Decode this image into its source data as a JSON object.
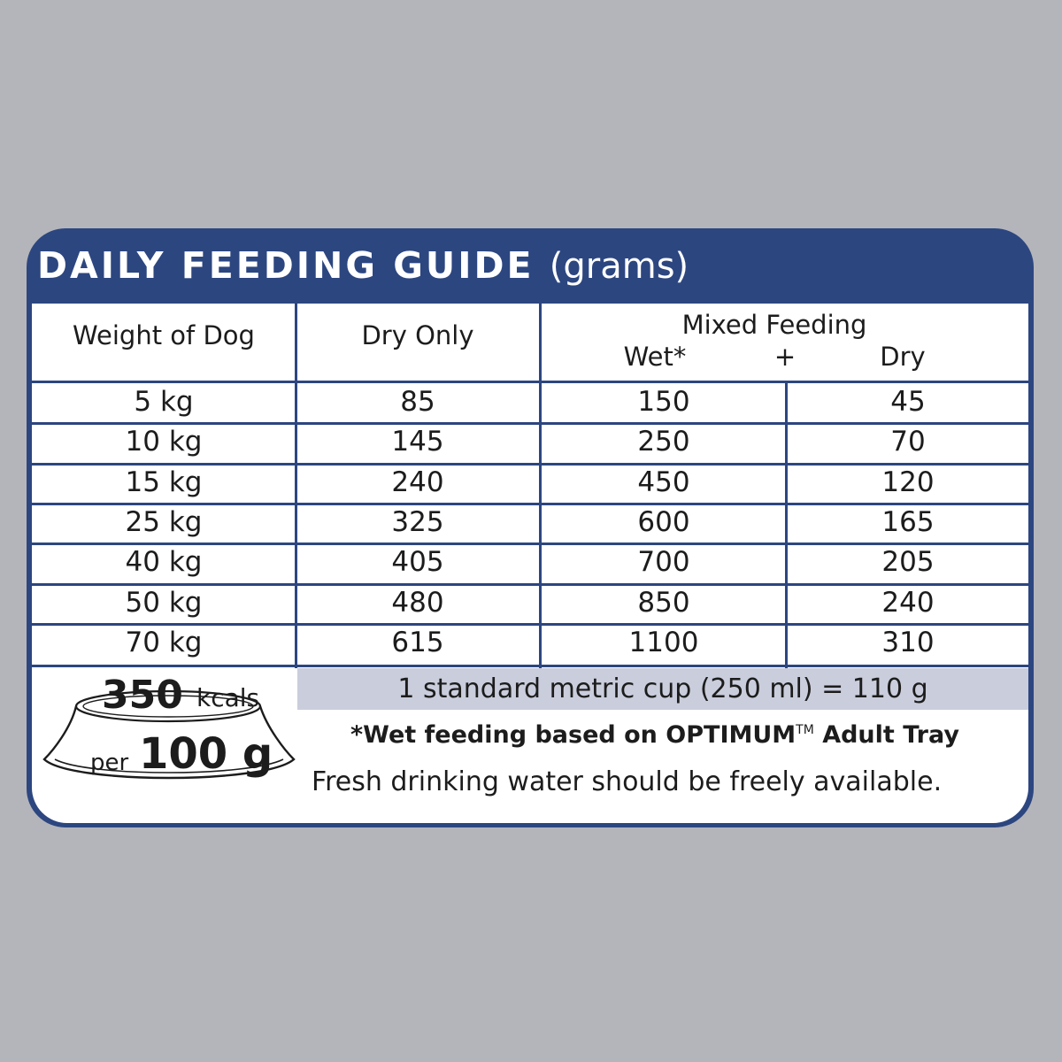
{
  "title": {
    "main": "DAILY FEEDING GUIDE",
    "unit": "(grams)"
  },
  "headers": {
    "weight": "Weight of Dog",
    "dry_only": "Dry Only",
    "mixed": "Mixed Feeding",
    "mixed_wet": "Wet*",
    "mixed_plus": "+",
    "mixed_dry": "Dry"
  },
  "rows": [
    {
      "weight": "5 kg",
      "dry_only": "85",
      "wet": "150",
      "dry": "45"
    },
    {
      "weight": "10 kg",
      "dry_only": "145",
      "wet": "250",
      "dry": "70"
    },
    {
      "weight": "15 kg",
      "dry_only": "240",
      "wet": "450",
      "dry": "120"
    },
    {
      "weight": "25 kg",
      "dry_only": "325",
      "wet": "600",
      "dry": "165"
    },
    {
      "weight": "40 kg",
      "dry_only": "405",
      "wet": "700",
      "dry": "205"
    },
    {
      "weight": "50 kg",
      "dry_only": "480",
      "wet": "850",
      "dry": "240"
    },
    {
      "weight": "70 kg",
      "dry_only": "615",
      "wet": "1100",
      "dry": "310"
    }
  ],
  "cup_note": "1 standard metric cup (250 ml) = 110 g",
  "wet_note": {
    "text": "*Wet feeding based on OPTIMUM",
    "tm": "TM",
    "suffix": " Adult Tray"
  },
  "water_note": "Fresh drinking water should be freely available.",
  "energy": {
    "kcal_value": "350",
    "kcal_unit": "kcals",
    "per_word": "per",
    "per_amount": "100 g"
  },
  "colors": {
    "background": "#b4b5ba",
    "brand_blue": "#2c4680",
    "cup_bar": "#c9cddc",
    "panel": "#ffffff"
  }
}
